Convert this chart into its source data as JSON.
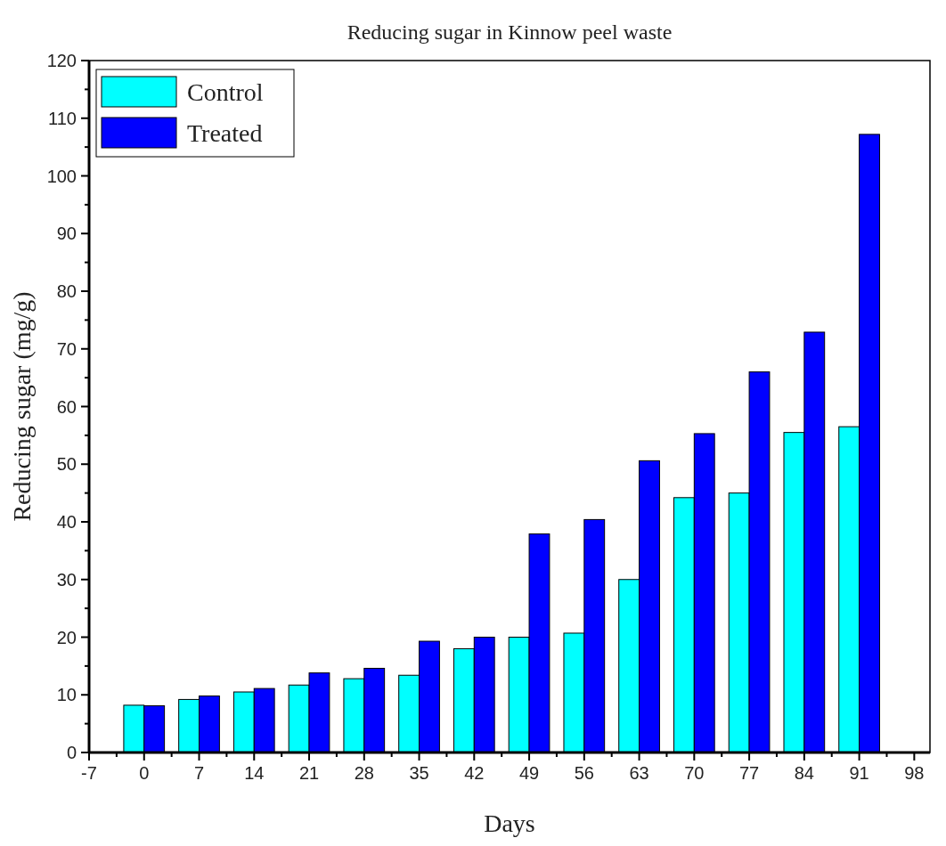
{
  "chart_data": {
    "type": "bar",
    "title": "Reducing sugar in Kinnow peel waste",
    "xlabel": "Days",
    "ylabel": "Reducing sugar (mg/g)",
    "x": [
      0,
      7,
      14,
      21,
      28,
      35,
      42,
      49,
      56,
      63,
      70,
      77,
      84,
      91
    ],
    "series": [
      {
        "name": "Control",
        "color": "#00ffff",
        "values": [
          8.2,
          9.2,
          10.5,
          11.7,
          12.8,
          13.4,
          18,
          20,
          20.7,
          30,
          44.2,
          45,
          55.5,
          56.5
        ]
      },
      {
        "name": "Treated",
        "color": "#0000ff",
        "values": [
          8.1,
          9.8,
          11.1,
          13.8,
          14.6,
          19.3,
          20,
          37.9,
          40.4,
          50.6,
          55.3,
          66,
          72.9,
          107.2
        ]
      }
    ],
    "xlim": [
      -7,
      100
    ],
    "xticks": [
      -7,
      0,
      7,
      14,
      21,
      28,
      35,
      42,
      49,
      56,
      63,
      70,
      77,
      84,
      91,
      98
    ],
    "ylim": [
      0,
      120
    ],
    "yticks": [
      0,
      10,
      20,
      30,
      40,
      50,
      60,
      70,
      80,
      90,
      100,
      110,
      120
    ],
    "grid": false,
    "legend": "top left"
  }
}
